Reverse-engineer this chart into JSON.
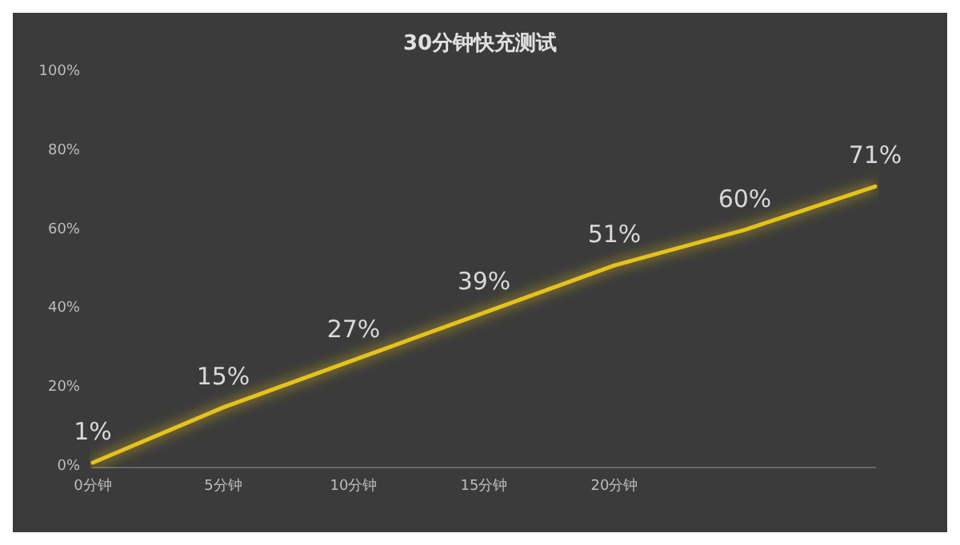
{
  "chart_data": {
    "type": "line",
    "title": "30分钟快充测试",
    "categories": [
      "0分钟",
      "5分钟",
      "10分钟",
      "15分钟",
      "20分钟",
      null,
      null
    ],
    "values": [
      1,
      15,
      27,
      39,
      51,
      60,
      71
    ],
    "value_labels": [
      "1%",
      "15%",
      "27%",
      "39%",
      "51%",
      "60%",
      "71%"
    ],
    "color": "#e6c21c",
    "ylim": [
      0,
      100
    ],
    "yticks": [
      {
        "value": 0,
        "label": "0%"
      },
      {
        "value": 20,
        "label": "20%"
      },
      {
        "value": 40,
        "label": "40%"
      },
      {
        "value": 60,
        "label": "60%"
      },
      {
        "value": 80,
        "label": "80%"
      },
      {
        "value": 100,
        "label": "100%"
      }
    ],
    "grid": false,
    "marker": "none",
    "line_style": "solid"
  }
}
